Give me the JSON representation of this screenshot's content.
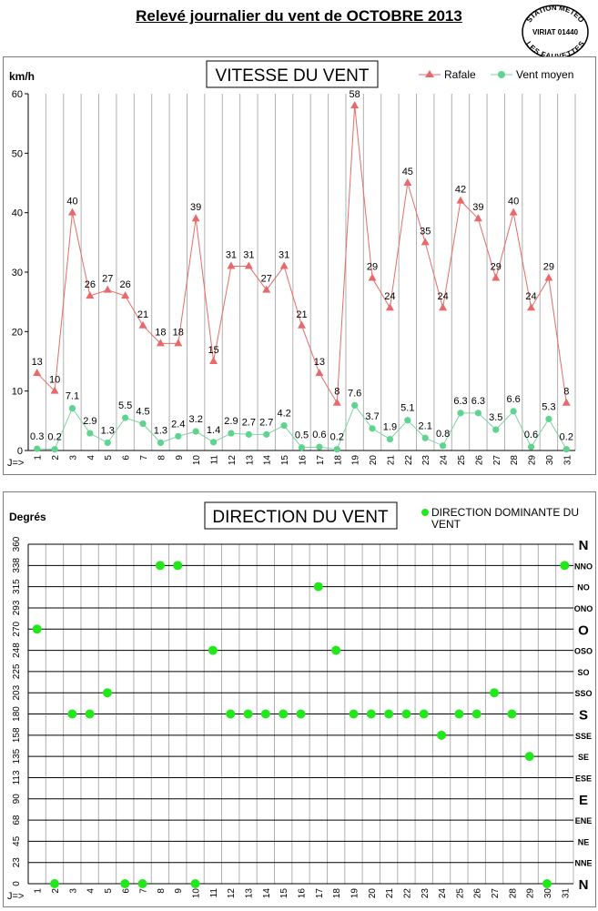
{
  "page_title": "Relevé journalier du vent de OCTOBRE 2013",
  "stamp": {
    "top_text": "STATION METEO",
    "middle_text": "VIRIAT 01440",
    "bottom_text": "LES FAUVETTES"
  },
  "colors": {
    "rafale": "#e8696b",
    "rafale_line": "#e46c6a",
    "vent_moyen": "#5fd48f",
    "vent_moyen_line": "#7ed3a0",
    "direction": "#22e81b",
    "grid": "#b0b0b0"
  },
  "chart_data": [
    {
      "type": "line",
      "title": "VITESSE DU VENT",
      "ylabel": "km/h",
      "x_prefix": "J=>",
      "ylim": [
        0,
        60
      ],
      "y_ticks": [
        0,
        10,
        20,
        30,
        40,
        50,
        60
      ],
      "categories": [
        1,
        2,
        3,
        4,
        5,
        6,
        7,
        8,
        9,
        10,
        11,
        12,
        13,
        14,
        15,
        16,
        17,
        18,
        19,
        20,
        21,
        22,
        23,
        24,
        25,
        26,
        27,
        28,
        29,
        30,
        31
      ],
      "legend_position": "top-right",
      "series": [
        {
          "name": "Rafale",
          "marker": "triangle",
          "values": [
            13,
            10,
            40,
            26,
            27,
            26,
            21,
            18,
            18,
            39,
            15,
            31,
            31,
            27,
            31,
            21,
            13,
            8,
            58,
            29,
            24,
            45,
            35,
            24,
            42,
            39,
            29,
            40,
            24,
            29,
            8
          ],
          "labels": [
            "13",
            "10",
            "40",
            "26",
            "27",
            "26",
            "21",
            "18",
            "18",
            "39",
            "15",
            "31",
            "31",
            "27",
            "31",
            "21",
            "13",
            "8",
            "58",
            "29",
            "24",
            "45",
            "35",
            "24",
            "42",
            "39",
            "29",
            "40",
            "24",
            "29",
            "8"
          ]
        },
        {
          "name": "Vent moyen",
          "marker": "circle",
          "values": [
            0.3,
            0.2,
            7.1,
            2.9,
            1.3,
            5.5,
            4.5,
            1.3,
            2.4,
            3.2,
            1.4,
            2.9,
            2.7,
            2.7,
            4.2,
            0.5,
            0.6,
            0.2,
            7.6,
            3.7,
            1.9,
            5.1,
            2.1,
            0.8,
            6.3,
            6.3,
            3.5,
            6.6,
            0.6,
            5.3,
            0.2
          ],
          "labels": [
            "0.3",
            "0.2",
            "7.1",
            "2.9",
            "1.3",
            "5.5",
            "4.5",
            "1.3",
            "2.4",
            "3.2",
            "1.4",
            "2.9",
            "2.7",
            "2.7",
            "4.2",
            "0.5",
            "0.6",
            "0.2",
            "7.6",
            "3.7",
            "1.9",
            "5.1",
            "2.1",
            "0.8",
            "6.3",
            "6.3",
            "3.5",
            "6.6",
            "0.6",
            "5.3",
            "0.2"
          ]
        }
      ]
    },
    {
      "type": "scatter",
      "title": "DIRECTION DU VENT",
      "ylabel": "Degrés",
      "x_prefix": "J=>",
      "ylim": [
        0,
        360
      ],
      "y_ticks": [
        "0",
        "23",
        "45",
        "68",
        "90",
        "113",
        "135",
        "158",
        "180",
        "203",
        "225",
        "248",
        "270",
        "293",
        "315",
        "338",
        "360"
      ],
      "compass_labels": [
        "N",
        "NNE",
        "NE",
        "ENE",
        "E",
        "ESE",
        "SE",
        "SSE",
        "S",
        "SSO",
        "SO",
        "OSO",
        "O",
        "ONO",
        "NO",
        "NNO",
        "N"
      ],
      "categories": [
        1,
        2,
        3,
        4,
        5,
        6,
        7,
        8,
        9,
        10,
        11,
        12,
        13,
        14,
        15,
        16,
        17,
        18,
        19,
        20,
        21,
        22,
        23,
        24,
        25,
        26,
        27,
        28,
        29,
        30,
        31
      ],
      "legend_position": "top-right",
      "series": [
        {
          "name": "DIRECTION DOMINANTE DU VENT",
          "values": [
            270,
            0,
            180,
            180,
            202.5,
            0,
            0,
            337.5,
            337.5,
            0,
            247.5,
            180,
            180,
            180,
            180,
            180,
            315,
            247.5,
            180,
            180,
            180,
            180,
            180,
            157.5,
            180,
            180,
            202.5,
            180,
            135,
            0,
            337.5
          ]
        }
      ]
    }
  ]
}
